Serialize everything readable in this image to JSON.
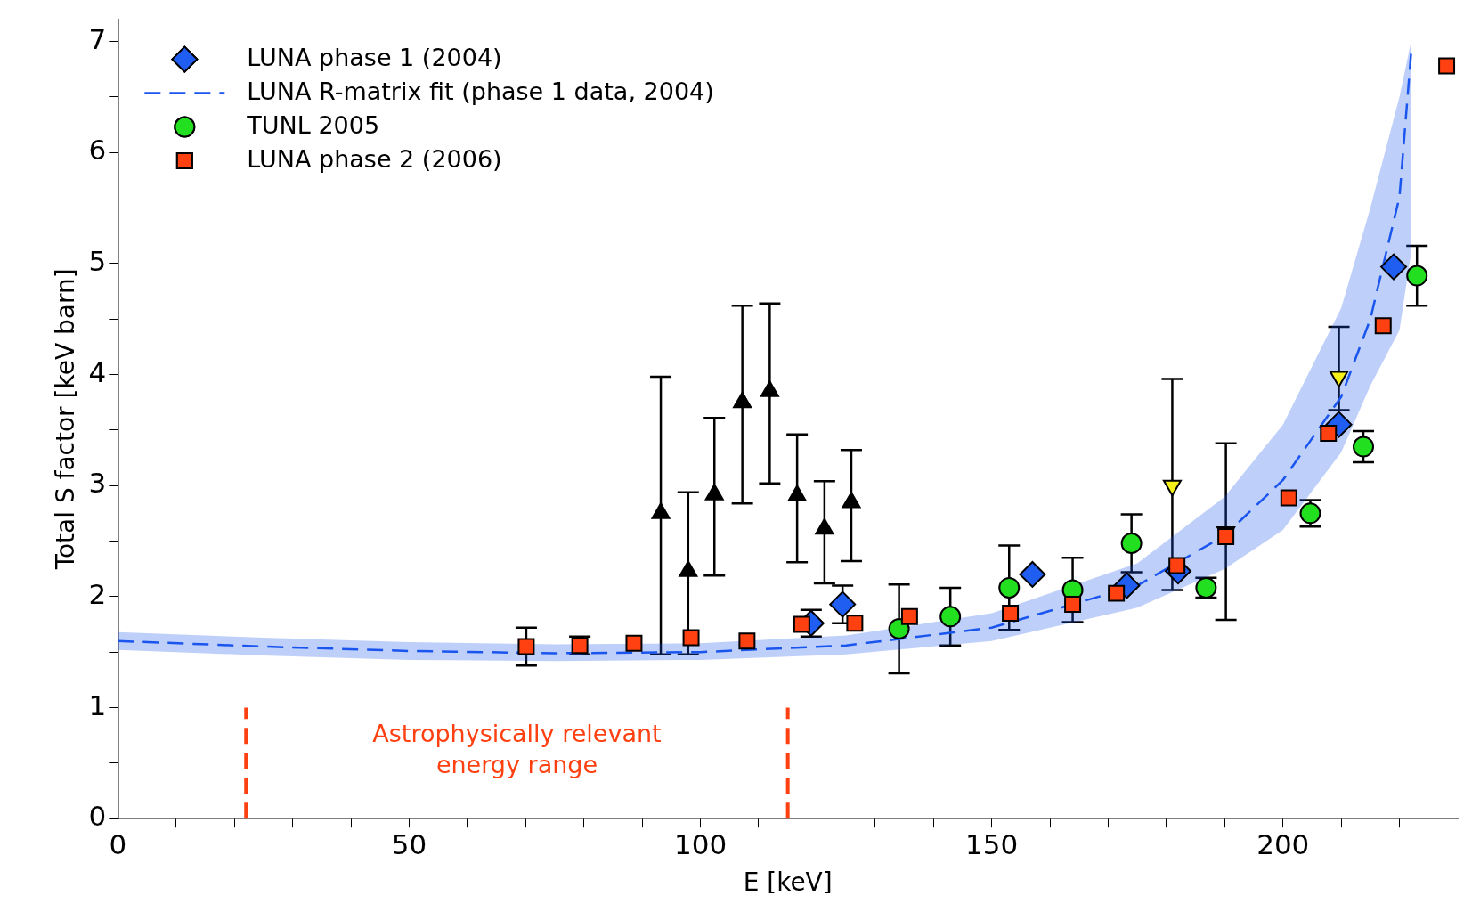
{
  "chart_data": {
    "type": "scatter",
    "xlabel": "E [keV]",
    "ylabel": "Total S factor [keV barn]",
    "xlim": [
      0,
      230
    ],
    "ylim": [
      0,
      7.2
    ],
    "xticks": [
      0,
      {
        "value": 10,
        "label": null
      },
      {
        "value": 20,
        "label": null
      },
      {
        "value": 30,
        "label": null
      },
      {
        "value": 40,
        "label": null
      },
      50,
      {
        "value": 60,
        "label": null
      },
      {
        "value": 70,
        "label": null
      },
      {
        "value": 80,
        "label": null
      },
      {
        "value": 90,
        "label": null
      },
      100,
      {
        "value": 110,
        "label": null
      },
      {
        "value": 120,
        "label": null
      },
      {
        "value": 130,
        "label": null
      },
      {
        "value": 140,
        "label": null
      },
      150,
      {
        "value": 160,
        "label": null
      },
      {
        "value": 170,
        "label": null
      },
      {
        "value": 180,
        "label": null
      },
      {
        "value": 190,
        "label": null
      },
      200,
      {
        "value": 210,
        "label": null
      },
      {
        "value": 220,
        "label": null
      }
    ],
    "yticks": [
      0,
      {
        "value": 0.5,
        "label": null
      },
      1,
      {
        "value": 1.5,
        "label": null
      },
      2,
      {
        "value": 2.5,
        "label": null
      },
      3,
      {
        "value": 3.5,
        "label": null
      },
      4,
      {
        "value": 4.5,
        "label": null
      },
      5,
      {
        "value": 5.5,
        "label": null
      },
      6,
      {
        "value": 6.5,
        "label": null
      },
      7
    ],
    "legend": "top left",
    "grid": false,
    "series": [
      {
        "name": "LUNA phase 1 (2004)",
        "color": "#1f5ef0",
        "marker": "diamond",
        "x": [
          119,
          124.4,
          157,
          173.2,
          182,
          209.6,
          219
        ],
        "values": [
          1.76,
          1.93,
          2.2,
          2.1,
          2.23,
          3.55,
          4.97
        ],
        "errors": [
          0.12,
          0.17,
          null,
          null,
          null,
          null,
          null
        ]
      },
      {
        "type": "line",
        "name": "LUNA R-matrix fit (phase 1 data, 2004)",
        "color": "#1a55ee",
        "line_style": "dashed",
        "marker": "none",
        "x": [
          0,
          25,
          50,
          75,
          100,
          125,
          150,
          175,
          190,
          200,
          210,
          215,
          220,
          222
        ],
        "values": [
          1.6,
          1.55,
          1.51,
          1.49,
          1.5,
          1.56,
          1.72,
          2.1,
          2.55,
          3.05,
          3.8,
          4.5,
          5.6,
          6.9
        ],
        "lower": [
          1.52,
          1.47,
          1.43,
          1.42,
          1.43,
          1.48,
          1.6,
          1.9,
          2.25,
          2.6,
          3.3,
          3.9,
          4.4,
          5.1
        ],
        "upper": [
          1.68,
          1.63,
          1.59,
          1.57,
          1.58,
          1.65,
          1.85,
          2.3,
          2.9,
          3.55,
          4.6,
          5.5,
          6.5,
          7.0
        ]
      },
      {
        "name": "TUNL 2005",
        "color": "#22e01f",
        "marker": "circle",
        "x": [
          134.1,
          142.9,
          153,
          163.9,
          174,
          186.8,
          204.7,
          213.8,
          223
        ],
        "values": [
          1.71,
          1.82,
          2.08,
          2.06,
          2.48,
          2.08,
          2.75,
          3.35,
          4.89
        ],
        "errors": [
          0.4,
          0.26,
          0.38,
          0.29,
          0.26,
          0.09,
          0.12,
          0.14,
          0.27
        ]
      },
      {
        "color": "#000000",
        "marker": "triangle",
        "x": [
          93.2,
          97.9,
          102.4,
          107.2,
          111.9,
          116.6,
          121.3,
          125.9
        ],
        "values": [
          2.75,
          2.23,
          2.92,
          3.75,
          3.85,
          2.91,
          2.61,
          2.85
        ],
        "errors": [
          [
            1.48,
            3.98
          ],
          [
            1.48,
            2.94
          ],
          [
            2.19,
            3.61
          ],
          [
            2.84,
            4.62
          ],
          [
            3.02,
            4.64
          ],
          [
            2.31,
            3.46
          ],
          [
            2.12,
            3.04
          ],
          [
            2.32,
            3.32
          ]
        ]
      },
      {
        "color": "#f5f01a",
        "marker": "triangle_down",
        "x": [
          181,
          190.2,
          209.6
        ],
        "values": [
          3.0,
          2.58,
          3.98
        ],
        "errors": [
          [
            2.06,
            3.96
          ],
          [
            1.79,
            3.38
          ],
          [
            3.68,
            4.43
          ]
        ]
      },
      {
        "name": "LUNA phase 2 (2006)",
        "color": "#ff4010",
        "marker": "square",
        "x": [
          70.1,
          79.3,
          88.6,
          98.4,
          108,
          117.4,
          126.5,
          135.9,
          153.2,
          163.9,
          171.4,
          181.8,
          190.2,
          201,
          207.8,
          217.2,
          228.1
        ],
        "values": [
          1.55,
          1.56,
          1.58,
          1.63,
          1.6,
          1.75,
          1.76,
          1.82,
          1.85,
          1.93,
          2.03,
          2.28,
          2.54,
          2.89,
          3.47,
          4.44,
          6.78
        ],
        "errors": [
          0.17,
          0.08,
          null,
          null,
          null,
          null,
          null,
          null,
          null,
          null,
          null,
          null,
          null,
          null,
          null,
          null,
          null
        ]
      }
    ],
    "ref_lines": [
      {
        "axis": "x",
        "value": 22,
        "color": "#ff4010",
        "line_style": "dashed"
      },
      {
        "axis": "x",
        "value": 115,
        "color": "#ff4010",
        "line_style": "dashed"
      }
    ],
    "annotations": [
      "Astrophysically relevant energy range"
    ]
  }
}
